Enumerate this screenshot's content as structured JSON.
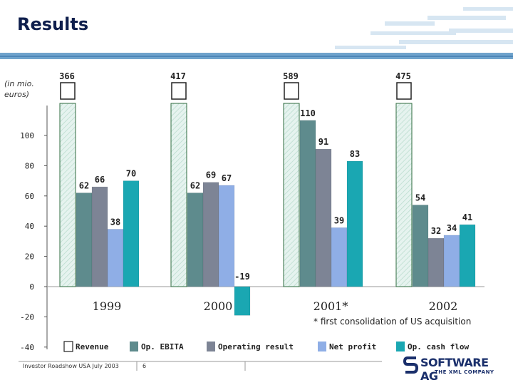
{
  "page": {
    "title": "Results",
    "units_label": "(in mio. euros)",
    "footnote": "* first consolidation of US acquisition",
    "footer_text": "Investor Roadshow USA July 2003",
    "page_number": "6",
    "logo_name": "SOFTWARE AG",
    "logo_tagline": "THE XML COMPANY"
  },
  "colors": {
    "title": "#0f1f4d",
    "band": "#6fa3cc",
    "revenue_stroke": "#2f6b3f",
    "revenue_fill": "#e6f3ef",
    "op_ebita": "#5e8b8d",
    "operating_result": "#7d8495",
    "net_profit": "#8faee6",
    "op_cash_flow": "#1aa7b2",
    "axis": "#555555"
  },
  "chart_data": {
    "type": "bar",
    "title": "Results",
    "ylabel": "(in mio. euros)",
    "ylim": [
      -40,
      120
    ],
    "yticks": [
      100,
      80,
      60,
      40,
      20,
      0,
      -20,
      -40
    ],
    "categories": [
      "1999",
      "2000",
      "2001*",
      "2002"
    ],
    "revenue": {
      "name": "Revenue",
      "values": [
        366,
        417,
        589,
        475
      ],
      "note": "axis break: revenue bars exceed the value scale"
    },
    "series": [
      {
        "name": "Op. EBITA",
        "key": "op_ebita",
        "values": [
          62,
          62,
          110,
          54
        ]
      },
      {
        "name": "Operating result",
        "key": "operating_result",
        "values": [
          66,
          69,
          91,
          32
        ]
      },
      {
        "name": "Net profit",
        "key": "net_profit",
        "values": [
          38,
          67,
          39,
          34
        ]
      },
      {
        "name": "Op. cash flow",
        "key": "op_cash_flow",
        "values": [
          70,
          -19,
          83,
          41
        ]
      }
    ],
    "legend": [
      "Revenue",
      "Op. EBITA",
      "Operating result",
      "Net profit",
      "Op. cash flow"
    ],
    "legend_position": "bottom"
  }
}
